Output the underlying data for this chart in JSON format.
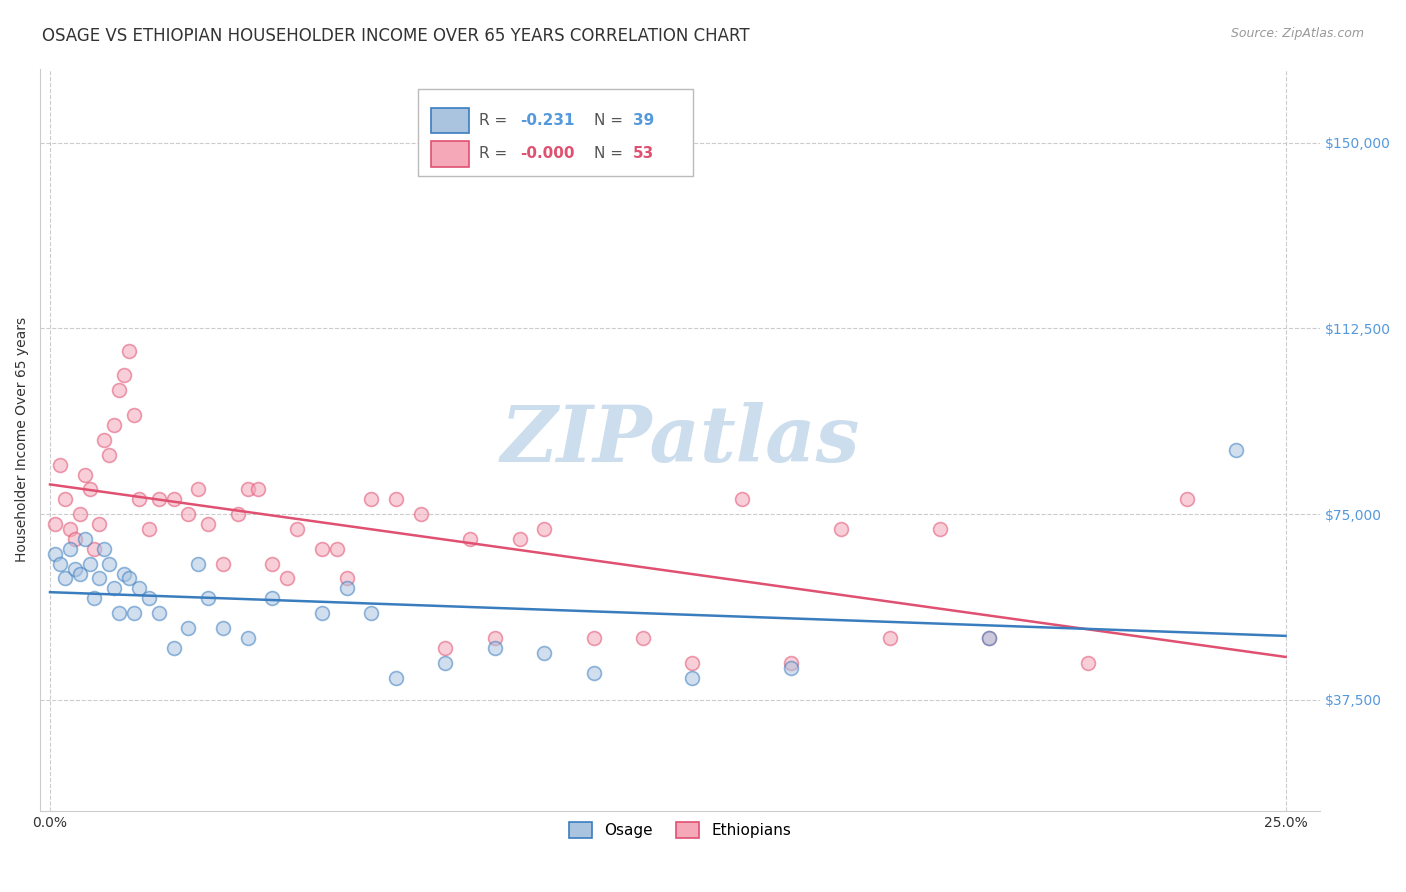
{
  "title": "OSAGE VS ETHIOPIAN HOUSEHOLDER INCOME OVER 65 YEARS CORRELATION CHART",
  "source": "Source: ZipAtlas.com",
  "ylabel": "Householder Income Over 65 years",
  "ytick_labels": [
    "$37,500",
    "$75,000",
    "$112,500",
    "$150,000"
  ],
  "ytick_values": [
    37500,
    75000,
    112500,
    150000
  ],
  "ylim": [
    15000,
    165000
  ],
  "xlim": [
    -0.002,
    0.257
  ],
  "xtick_positions": [
    0.0,
    0.25
  ],
  "xtick_labels": [
    "0.0%",
    "25.0%"
  ],
  "legend_osage_R": "-0.231",
  "legend_osage_N": "39",
  "legend_ethiopians_R": "-0.000",
  "legend_ethiopians_N": "53",
  "color_osage": "#aac4e0",
  "color_ethiopians": "#f4a8b8",
  "color_osage_line": "#3a7dbf",
  "color_ethiopians_line": "#e05070",
  "color_title": "#333333",
  "color_source": "#999999",
  "color_ytick": "#5599dd",
  "color_watermark": "#ccdded",
  "watermark_text": "ZIPatlas",
  "background_color": "#ffffff",
  "grid_color": "#cccccc",
  "osage_x": [
    0.001,
    0.002,
    0.003,
    0.004,
    0.005,
    0.006,
    0.007,
    0.008,
    0.009,
    0.01,
    0.011,
    0.012,
    0.013,
    0.014,
    0.015,
    0.016,
    0.017,
    0.018,
    0.02,
    0.022,
    0.025,
    0.028,
    0.03,
    0.032,
    0.035,
    0.04,
    0.045,
    0.055,
    0.06,
    0.065,
    0.07,
    0.08,
    0.09,
    0.1,
    0.11,
    0.13,
    0.15,
    0.19,
    0.24
  ],
  "osage_y": [
    67000,
    65000,
    62000,
    68000,
    64000,
    63000,
    70000,
    65000,
    58000,
    62000,
    68000,
    65000,
    60000,
    55000,
    63000,
    62000,
    55000,
    60000,
    58000,
    55000,
    48000,
    52000,
    65000,
    58000,
    52000,
    50000,
    58000,
    55000,
    60000,
    55000,
    42000,
    45000,
    48000,
    47000,
    43000,
    42000,
    44000,
    50000,
    88000
  ],
  "ethiopians_x": [
    0.001,
    0.002,
    0.003,
    0.004,
    0.005,
    0.006,
    0.007,
    0.008,
    0.009,
    0.01,
    0.011,
    0.012,
    0.013,
    0.014,
    0.015,
    0.016,
    0.017,
    0.018,
    0.02,
    0.022,
    0.025,
    0.028,
    0.03,
    0.032,
    0.035,
    0.038,
    0.04,
    0.042,
    0.045,
    0.048,
    0.05,
    0.055,
    0.058,
    0.06,
    0.065,
    0.07,
    0.075,
    0.08,
    0.085,
    0.09,
    0.095,
    0.1,
    0.11,
    0.12,
    0.13,
    0.14,
    0.15,
    0.16,
    0.17,
    0.18,
    0.19,
    0.21,
    0.23
  ],
  "ethiopians_y": [
    73000,
    85000,
    78000,
    72000,
    70000,
    75000,
    83000,
    80000,
    68000,
    73000,
    90000,
    87000,
    93000,
    100000,
    103000,
    108000,
    95000,
    78000,
    72000,
    78000,
    78000,
    75000,
    80000,
    73000,
    65000,
    75000,
    80000,
    80000,
    65000,
    62000,
    72000,
    68000,
    68000,
    62000,
    78000,
    78000,
    75000,
    48000,
    70000,
    50000,
    70000,
    72000,
    50000,
    50000,
    45000,
    78000,
    45000,
    72000,
    50000,
    72000,
    50000,
    45000,
    78000
  ],
  "marker_size": 100,
  "marker_alpha": 0.55,
  "marker_linewidth": 1.2,
  "title_fontsize": 12,
  "source_fontsize": 9,
  "ylabel_fontsize": 10,
  "tick_fontsize": 10,
  "legend_fontsize": 11
}
